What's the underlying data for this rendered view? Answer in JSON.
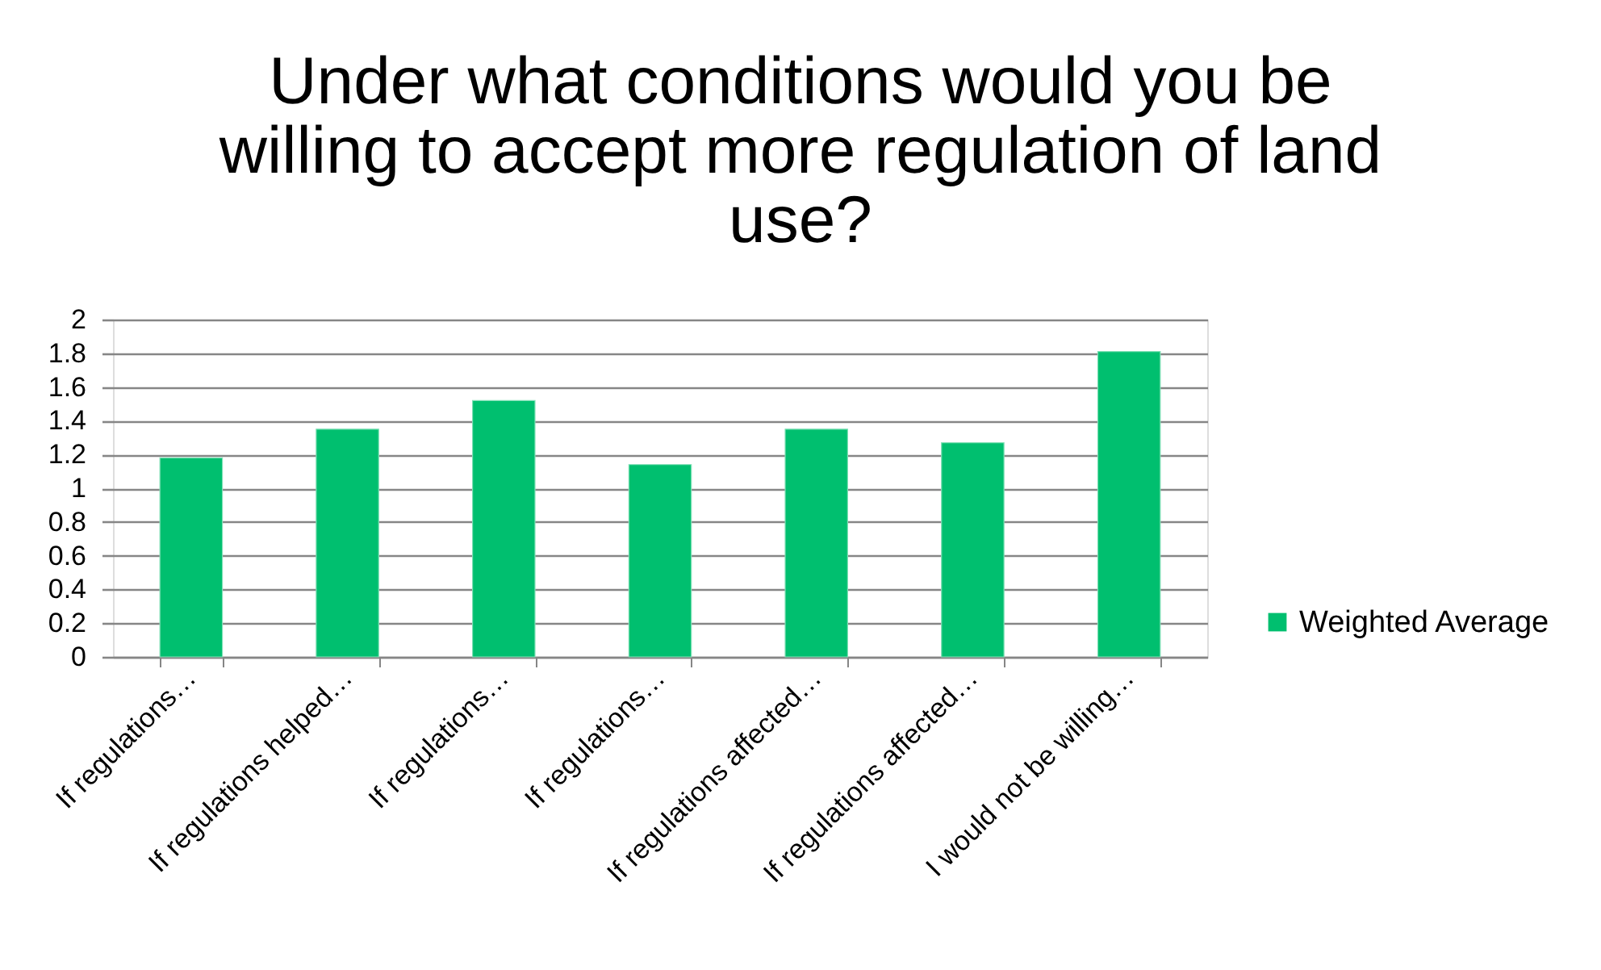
{
  "chart_data": {
    "type": "bar",
    "title": "Under what conditions would you be willing to accept more regulation of land use?",
    "categories": [
      "If regulations…",
      "If regulations helped…",
      "If regulations…",
      "If regulations…",
      "If regulations affected…",
      "If regulations affected…",
      "I would not be willing…"
    ],
    "series": [
      {
        "name": "Weighted Average",
        "color": "#00bf6f",
        "values": [
          1.18,
          1.35,
          1.52,
          1.14,
          1.35,
          1.27,
          1.81
        ]
      }
    ],
    "ylim": [
      0,
      2
    ],
    "yticks": [
      0,
      0.2,
      0.4,
      0.6,
      0.8,
      1,
      1.2,
      1.4,
      1.6,
      1.8,
      2
    ],
    "grid": "y",
    "legend": "right"
  }
}
